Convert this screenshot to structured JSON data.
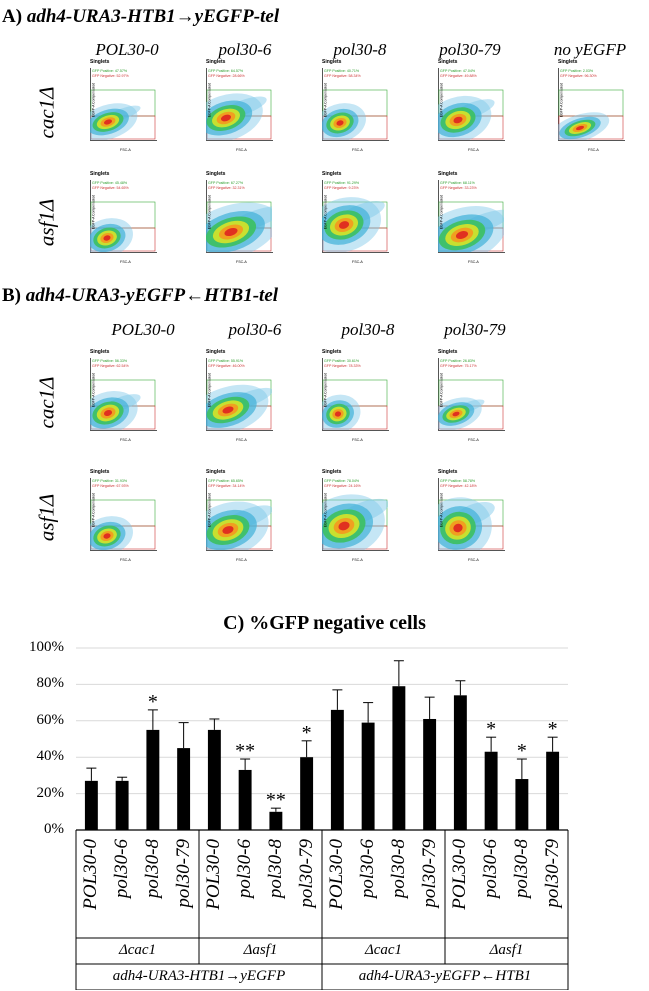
{
  "panel_a": {
    "label": "A)",
    "construct": "adh4-URA3-HTB1",
    "arrow": "→",
    "reporter": "yEGFP-tel",
    "columns": [
      "POL30-0",
      "pol30-6",
      "pol30-8",
      "pol30-79",
      "no yEGFP"
    ],
    "rows": [
      "cac1Δ",
      "asf1Δ"
    ],
    "plots": [
      {
        "pos": "GFP Positive: 47.57%",
        "neg": "GFP Negative: 52.97%"
      },
      {
        "pos": "GFP Positive: 64.57%",
        "neg": "GFP Negative: 28.66%"
      },
      {
        "pos": "GFP Positive: 40.71%",
        "neg": "GFP Negative: 58.34%"
      },
      {
        "pos": "GFP Positive: 47.04%",
        "neg": "GFP Negative: 49.88%"
      },
      {
        "pos": "GFP Positive: 2.03%",
        "neg": "GFP Negative: 96.30%"
      },
      {
        "pos": "GFP Positive: 45.48%",
        "neg": "GFP Negative: 54.65%"
      },
      {
        "pos": "GFP Positive: 67.27%",
        "neg": "GFP Negative: 32.31%"
      },
      {
        "pos": "GFP Positive: 91.29%",
        "neg": "GFP Negative: 9.23%"
      },
      {
        "pos": "GFP Positive: 68.11%",
        "neg": "GFP Negative: 33.23%"
      }
    ]
  },
  "panel_b": {
    "label": "B)",
    "construct": "adh4-URA3-yEGFP",
    "arrow": "←",
    "reporter": "HTB1-tel",
    "columns": [
      "POL30-0",
      "pol30-6",
      "pol30-8",
      "pol30-79"
    ],
    "rows": [
      "cac1Δ",
      "asf1Δ"
    ],
    "plots": [
      {
        "pos": "GFP Positive: 56.33%",
        "neg": "GFP Negative: 62.54%"
      },
      {
        "pos": "GFP Positive: 55.91%",
        "neg": "GFP Negative: 46.00%"
      },
      {
        "pos": "GFP Positive: 30.61%",
        "neg": "GFP Negative: 78.33%"
      },
      {
        "pos": "GFP Positive: 26.83%",
        "neg": "GFP Negative: 75.17%"
      },
      {
        "pos": "GFP Positive: 31.93%",
        "neg": "GFP Negative: 67.93%"
      },
      {
        "pos": "GFP Positive: 65.65%",
        "neg": "GFP Negative: 34.14%"
      },
      {
        "pos": "GFP Positive: 78.04%",
        "neg": "GFP Negative: 24.16%"
      },
      {
        "pos": "GFP Positive: 58.78%",
        "neg": "GFP Negative: 42.18%"
      }
    ]
  },
  "flow": {
    "singlets": "Singlets",
    "ylabel": "EGFP-A Compensated",
    "xlabel": "FSC-A"
  },
  "panel_c": {
    "label": "C)",
    "title_rest": "%GFP negative cells"
  },
  "chart_data": {
    "type": "bar",
    "title": "%GFP negative cells",
    "ylim": [
      0,
      100
    ],
    "yticks": [
      "0%",
      "20%",
      "40%",
      "60%",
      "80%",
      "100%"
    ],
    "categories": [
      "POL30-0",
      "pol30-6",
      "pol30-8",
      "pol30-79",
      "POL30-0",
      "pol30-6",
      "pol30-8",
      "pol30-79",
      "POL30-0",
      "pol30-6",
      "pol30-8",
      "pol30-79",
      "POL30-0",
      "pol30-6",
      "pol30-8",
      "pol30-79"
    ],
    "values": [
      27,
      27,
      55,
      45,
      55,
      33,
      10,
      40,
      66,
      59,
      79,
      61,
      74,
      43,
      28,
      43
    ],
    "errors": [
      7,
      2,
      11,
      14,
      6,
      6,
      2,
      9,
      11,
      11,
      14,
      12,
      8,
      8,
      11,
      8
    ],
    "significance": [
      "",
      "",
      "*",
      "",
      "",
      "**",
      "**",
      "*",
      "",
      "",
      "",
      "",
      "",
      "*",
      "*",
      "*"
    ],
    "groups": [
      "Δcac1",
      "Δasf1",
      "Δcac1",
      "Δasf1"
    ],
    "supergroups": [
      "adh4-URA3-HTB1→yEGFP",
      "adh4-URA3-yEGFP←HTB1"
    ],
    "bar_color": "#000000",
    "grid_color": "#d9d9d9"
  }
}
